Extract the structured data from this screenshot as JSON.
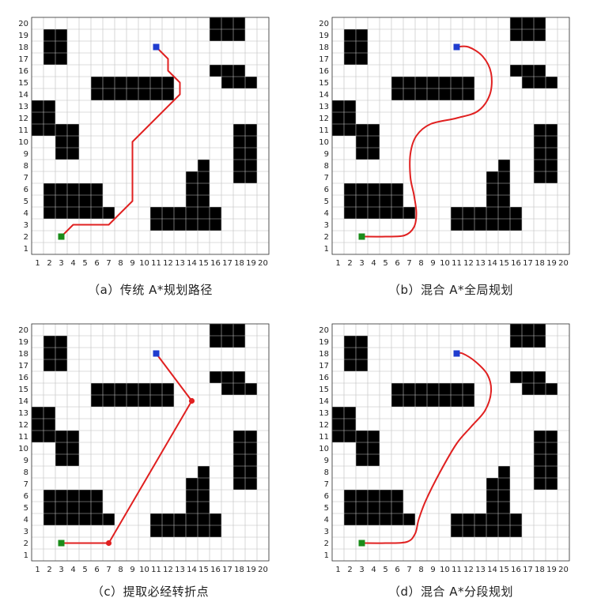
{
  "grid": {
    "size": 20,
    "x_ticks": [
      "1",
      "2",
      "3",
      "4",
      "5",
      "6",
      "7",
      "8",
      "9",
      "10",
      "11",
      "12",
      "13",
      "14",
      "15",
      "16",
      "17",
      "18",
      "19",
      "20"
    ],
    "y_ticks": [
      "1",
      "2",
      "3",
      "4",
      "5",
      "6",
      "7",
      "8",
      "9",
      "10",
      "11",
      "12",
      "13",
      "14",
      "15",
      "16",
      "17",
      "18",
      "19",
      "20"
    ],
    "obstacles": [
      [
        2,
        17
      ],
      [
        3,
        17
      ],
      [
        2,
        18
      ],
      [
        3,
        18
      ],
      [
        2,
        19
      ],
      [
        3,
        19
      ],
      [
        16,
        19
      ],
      [
        17,
        19
      ],
      [
        18,
        19
      ],
      [
        16,
        20
      ],
      [
        17,
        20
      ],
      [
        18,
        20
      ],
      [
        6,
        14
      ],
      [
        7,
        14
      ],
      [
        8,
        14
      ],
      [
        9,
        14
      ],
      [
        10,
        14
      ],
      [
        11,
        14
      ],
      [
        12,
        14
      ],
      [
        6,
        15
      ],
      [
        7,
        15
      ],
      [
        8,
        15
      ],
      [
        9,
        15
      ],
      [
        10,
        15
      ],
      [
        11,
        15
      ],
      [
        12,
        15
      ],
      [
        16,
        16
      ],
      [
        17,
        16
      ],
      [
        18,
        16
      ],
      [
        17,
        15
      ],
      [
        18,
        15
      ],
      [
        19,
        15
      ],
      [
        1,
        11
      ],
      [
        2,
        11
      ],
      [
        1,
        12
      ],
      [
        2,
        12
      ],
      [
        1,
        13
      ],
      [
        2,
        13
      ],
      [
        3,
        9
      ],
      [
        4,
        9
      ],
      [
        3,
        10
      ],
      [
        4,
        10
      ],
      [
        3,
        11
      ],
      [
        4,
        11
      ],
      [
        18,
        7
      ],
      [
        19,
        7
      ],
      [
        18,
        8
      ],
      [
        19,
        8
      ],
      [
        18,
        9
      ],
      [
        19,
        9
      ],
      [
        18,
        10
      ],
      [
        19,
        10
      ],
      [
        18,
        11
      ],
      [
        19,
        11
      ],
      [
        15,
        8
      ],
      [
        14,
        7
      ],
      [
        15,
        7
      ],
      [
        14,
        6
      ],
      [
        15,
        6
      ],
      [
        14,
        5
      ],
      [
        15,
        5
      ],
      [
        2,
        4
      ],
      [
        3,
        4
      ],
      [
        4,
        4
      ],
      [
        5,
        4
      ],
      [
        6,
        4
      ],
      [
        7,
        4
      ],
      [
        2,
        5
      ],
      [
        3,
        5
      ],
      [
        4,
        5
      ],
      [
        5,
        5
      ],
      [
        6,
        5
      ],
      [
        2,
        6
      ],
      [
        3,
        6
      ],
      [
        4,
        6
      ],
      [
        5,
        6
      ],
      [
        6,
        6
      ],
      [
        11,
        3
      ],
      [
        12,
        3
      ],
      [
        13,
        3
      ],
      [
        14,
        3
      ],
      [
        15,
        3
      ],
      [
        16,
        3
      ],
      [
        11,
        4
      ],
      [
        12,
        4
      ],
      [
        13,
        4
      ],
      [
        14,
        4
      ],
      [
        15,
        4
      ],
      [
        16,
        4
      ]
    ],
    "start": [
      3,
      2
    ],
    "goal": [
      11,
      18
    ]
  },
  "colors": {
    "path": "#e02020",
    "start": "#1a8c1a",
    "goal": "#1f3ccf",
    "obstacle": "#000000",
    "gridline": "#bdbdbd"
  },
  "panels": [
    {
      "caption": "（a）传统 A*规划路径",
      "path_type": "polyline",
      "path": [
        [
          3,
          2
        ],
        [
          4,
          3
        ],
        [
          7,
          3
        ],
        [
          9,
          5
        ],
        [
          9,
          10
        ],
        [
          13,
          14
        ],
        [
          13,
          15
        ],
        [
          12,
          16
        ],
        [
          12,
          17
        ],
        [
          11,
          18
        ]
      ],
      "waypoints": []
    },
    {
      "caption": "（b）混合 A*全局规划",
      "path_type": "smooth",
      "path": [
        [
          3,
          2
        ],
        [
          5,
          2
        ],
        [
          6.6,
          2.1
        ],
        [
          7.4,
          2.8
        ],
        [
          7.6,
          4
        ],
        [
          7.4,
          5.5
        ],
        [
          7.1,
          7
        ],
        [
          7.1,
          9
        ],
        [
          7.6,
          10.5
        ],
        [
          8.8,
          11.5
        ],
        [
          11,
          12
        ],
        [
          12.8,
          12.6
        ],
        [
          13.8,
          14
        ],
        [
          13.9,
          15.8
        ],
        [
          13.2,
          17.2
        ],
        [
          12,
          18
        ],
        [
          11,
          18
        ]
      ],
      "waypoints": []
    },
    {
      "caption": "（c）提取必经转折点",
      "path_type": "polyline",
      "path": [
        [
          3,
          2
        ],
        [
          7,
          2
        ],
        [
          14,
          14
        ],
        [
          11,
          18
        ]
      ],
      "waypoints": [
        [
          7,
          2
        ],
        [
          14,
          14
        ]
      ]
    },
    {
      "caption": "（d）混合 A*分段规划",
      "path_type": "smooth",
      "path": [
        [
          3,
          2
        ],
        [
          5,
          2
        ],
        [
          6.8,
          2.1
        ],
        [
          7.5,
          2.8
        ],
        [
          7.8,
          4
        ],
        [
          8.4,
          5.6
        ],
        [
          9.6,
          8
        ],
        [
          11,
          10.4
        ],
        [
          12.2,
          11.8
        ],
        [
          13.4,
          13.2
        ],
        [
          13.9,
          14.8
        ],
        [
          13.6,
          16.2
        ],
        [
          12.6,
          17.3
        ],
        [
          11.5,
          18
        ],
        [
          11,
          18
        ]
      ],
      "waypoints": []
    }
  ]
}
